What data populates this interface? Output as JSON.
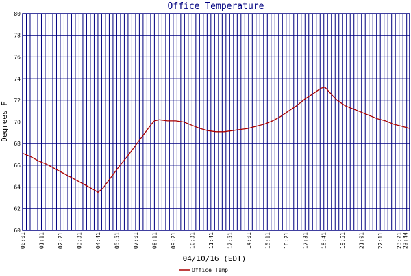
{
  "chart_data": {
    "type": "line",
    "title": "Office Temperature",
    "xlabel": "04/10/16 (EDT)",
    "ylabel": "Degrees F",
    "ylim": [
      60,
      80
    ],
    "yticks": [
      60,
      62,
      64,
      66,
      68,
      70,
      72,
      74,
      76,
      78,
      80
    ],
    "xlim": [
      "00:01",
      "24:00"
    ],
    "x_ticks": [
      "00:01",
      "01:11",
      "02:21",
      "03:31",
      "04:41",
      "05:51",
      "07:01",
      "08:11",
      "09:21",
      "10:31",
      "11:41",
      "12:51",
      "14:01",
      "15:11",
      "16:21",
      "17:31",
      "18:41",
      "19:51",
      "21:01",
      "22:11",
      "23:21",
      "23:44"
    ],
    "grid": true,
    "legend_position": "bottom",
    "series": [
      {
        "name": "Office Temp",
        "x": [
          "00:01",
          "00:30",
          "01:00",
          "01:30",
          "02:00",
          "02:30",
          "03:00",
          "03:30",
          "04:00",
          "04:30",
          "04:41",
          "05:00",
          "05:30",
          "06:00",
          "06:30",
          "07:00",
          "07:30",
          "08:00",
          "08:11",
          "08:30",
          "09:00",
          "09:30",
          "10:00",
          "10:30",
          "11:00",
          "11:30",
          "12:00",
          "12:30",
          "13:00",
          "13:30",
          "14:00",
          "14:30",
          "15:00",
          "15:30",
          "16:00",
          "16:30",
          "17:00",
          "17:30",
          "18:00",
          "18:30",
          "18:45",
          "19:00",
          "19:30",
          "20:00",
          "20:30",
          "21:00",
          "21:30",
          "22:00",
          "22:30",
          "23:00",
          "23:30",
          "24:00"
        ],
        "values": [
          67.1,
          66.8,
          66.4,
          66.1,
          65.7,
          65.3,
          64.9,
          64.5,
          64.1,
          63.7,
          63.5,
          63.9,
          64.9,
          65.9,
          66.8,
          67.8,
          68.8,
          69.8,
          70.1,
          70.2,
          70.1,
          70.1,
          70.0,
          69.7,
          69.4,
          69.2,
          69.1,
          69.1,
          69.2,
          69.3,
          69.4,
          69.6,
          69.8,
          70.1,
          70.5,
          71.0,
          71.5,
          72.1,
          72.6,
          73.1,
          73.2,
          72.8,
          72.0,
          71.5,
          71.2,
          70.9,
          70.6,
          70.3,
          70.1,
          69.8,
          69.6,
          69.4
        ]
      }
    ]
  },
  "colors": {
    "line": "#aa0000",
    "grid": "#000080",
    "frame": "#000080",
    "title": "#000080",
    "background": "#ffffff"
  }
}
